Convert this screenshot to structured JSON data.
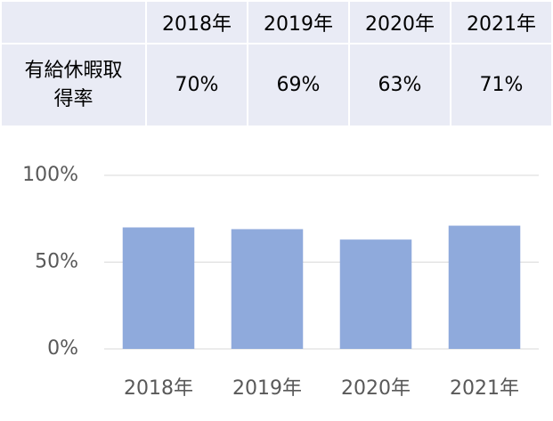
{
  "chart_data": {
    "type": "bar",
    "categories": [
      "2018年",
      "2019年",
      "2020年",
      "2021年"
    ],
    "series": [
      {
        "name": "有給休暇取得率",
        "color": "#8faadc",
        "values": [
          70,
          69,
          63,
          71
        ],
        "value_labels": [
          "70%",
          "69%",
          "63%",
          "71%"
        ]
      }
    ],
    "ylim": [
      0,
      100
    ],
    "yticks": [
      {
        "value": 0,
        "label": "0%"
      },
      {
        "value": 50,
        "label": "50%"
      },
      {
        "value": 100,
        "label": "100%"
      }
    ],
    "grid": true
  }
}
